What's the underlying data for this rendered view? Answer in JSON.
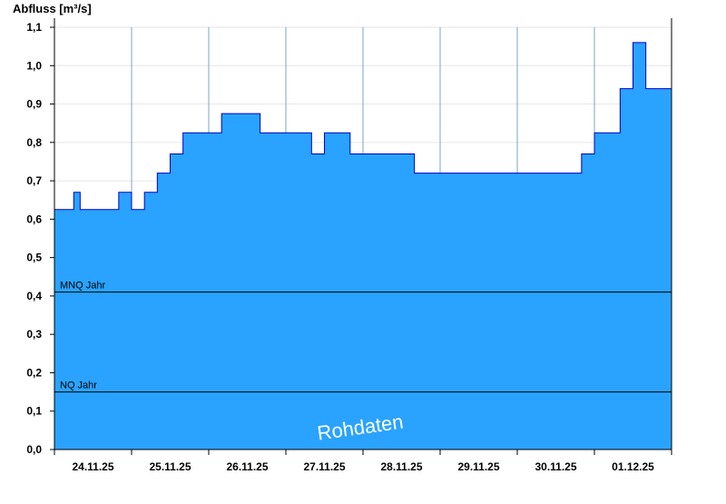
{
  "chart_data": {
    "type": "area",
    "ylabel": "Abfluss [m³/s]",
    "ylim": [
      0,
      1.1
    ],
    "yticks": [
      "0,0",
      "0,1",
      "0,2",
      "0,3",
      "0,4",
      "0,5",
      "0,6",
      "0,7",
      "0,8",
      "0,9",
      "1,0",
      "1,1"
    ],
    "x_categories": [
      "24.11.25",
      "25.11.25",
      "26.11.25",
      "27.11.25",
      "28.11.25",
      "29.11.25",
      "30.11.25",
      "01.12.25"
    ],
    "x_domain_days": [
      "24.11.25",
      "02.12.25"
    ],
    "series": [
      {
        "color": "#29a3ff",
        "line_color": "#0000c8",
        "points": [
          [
            "24.11.25 00:00",
            0.625
          ],
          [
            "24.11.25 04:00",
            0.625
          ],
          [
            "24.11.25 06:00",
            0.67
          ],
          [
            "24.11.25 08:00",
            0.625
          ],
          [
            "24.11.25 12:00",
            0.625
          ],
          [
            "24.11.25 16:00",
            0.625
          ],
          [
            "24.11.25 20:00",
            0.67
          ],
          [
            "25.11.25 00:00",
            0.625
          ],
          [
            "25.11.25 04:00",
            0.67
          ],
          [
            "25.11.25 08:00",
            0.72
          ],
          [
            "25.11.25 12:00",
            0.77
          ],
          [
            "25.11.25 16:00",
            0.825
          ],
          [
            "25.11.25 20:00",
            0.825
          ],
          [
            "26.11.25 00:00",
            0.825
          ],
          [
            "26.11.25 04:00",
            0.875
          ],
          [
            "26.11.25 08:00",
            0.875
          ],
          [
            "26.11.25 12:00",
            0.875
          ],
          [
            "26.11.25 16:00",
            0.825
          ],
          [
            "26.11.25 20:00",
            0.825
          ],
          [
            "27.11.25 00:00",
            0.825
          ],
          [
            "27.11.25 04:00",
            0.825
          ],
          [
            "27.11.25 08:00",
            0.77
          ],
          [
            "27.11.25 12:00",
            0.825
          ],
          [
            "27.11.25 16:00",
            0.825
          ],
          [
            "27.11.25 20:00",
            0.77
          ],
          [
            "28.11.25 00:00",
            0.77
          ],
          [
            "28.11.25 04:00",
            0.77
          ],
          [
            "28.11.25 08:00",
            0.77
          ],
          [
            "28.11.25 12:00",
            0.77
          ],
          [
            "28.11.25 16:00",
            0.72
          ],
          [
            "28.11.25 20:00",
            0.72
          ],
          [
            "29.11.25 00:00",
            0.72
          ],
          [
            "29.11.25 04:00",
            0.72
          ],
          [
            "29.11.25 08:00",
            0.72
          ],
          [
            "29.11.25 12:00",
            0.72
          ],
          [
            "29.11.25 16:00",
            0.72
          ],
          [
            "29.11.25 20:00",
            0.72
          ],
          [
            "30.11.25 00:00",
            0.72
          ],
          [
            "30.11.25 04:00",
            0.72
          ],
          [
            "30.11.25 08:00",
            0.72
          ],
          [
            "30.11.25 12:00",
            0.72
          ],
          [
            "30.11.25 16:00",
            0.72
          ],
          [
            "30.11.25 20:00",
            0.77
          ],
          [
            "01.12.25 00:00",
            0.825
          ],
          [
            "01.12.25 04:00",
            0.825
          ],
          [
            "01.12.25 08:00",
            0.94
          ],
          [
            "01.12.25 12:00",
            1.06
          ],
          [
            "01.12.25 16:00",
            0.94
          ],
          [
            "01.12.25 20:00",
            0.94
          ],
          [
            "02.12.25 00:00",
            0.94
          ]
        ]
      }
    ],
    "reference_lines": [
      {
        "label": "MNQ Jahr",
        "value": 0.41
      },
      {
        "label": "NQ Jahr",
        "value": 0.15
      }
    ],
    "watermark": "Rohdaten",
    "grid": true,
    "day_separators": true
  }
}
